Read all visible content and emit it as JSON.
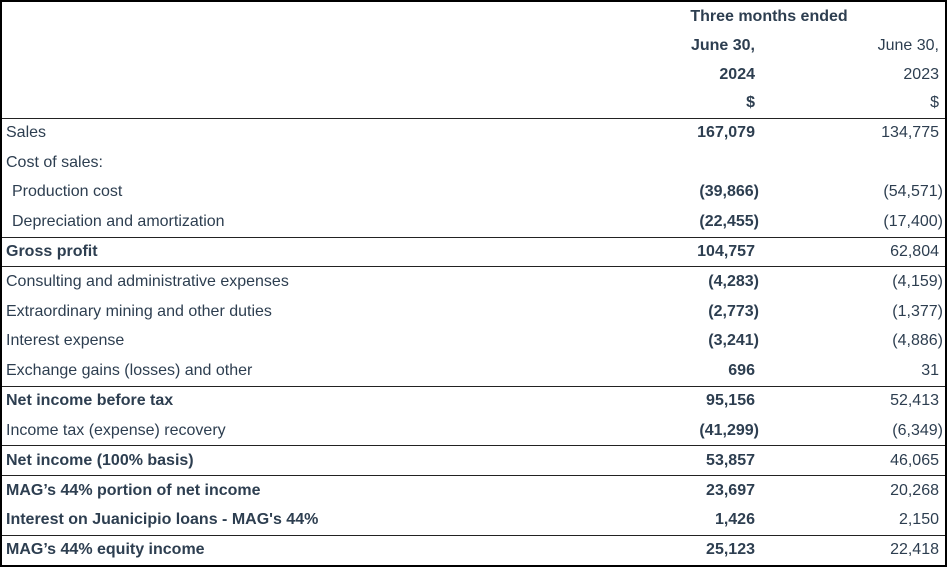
{
  "colors": {
    "text": "#2d3e50",
    "rule": "#222222",
    "outer_border": "#000000",
    "background": "#ffffff"
  },
  "table": {
    "header": {
      "group_title": "Three months ended",
      "col_2024": {
        "month": "June 30,",
        "year": "2024",
        "currency_symbol": "$"
      },
      "col_2023": {
        "month": "June 30,",
        "year": "2023",
        "currency_symbol": "$"
      }
    },
    "rows": [
      {
        "label": "Sales",
        "v2024": "167,079",
        "v2023": "134,775",
        "bold_label": false,
        "indent": false,
        "rule_top": false,
        "rule_bottom": false
      },
      {
        "label": "Cost of sales:",
        "v2024": "",
        "v2023": "",
        "bold_label": false,
        "indent": false,
        "rule_top": false,
        "rule_bottom": false
      },
      {
        "label": "Production cost",
        "v2024": "(39,866)",
        "v2023": "(54,571)",
        "bold_label": false,
        "indent": true,
        "rule_top": false,
        "rule_bottom": false
      },
      {
        "label": "Depreciation and amortization",
        "v2024": "(22,455)",
        "v2023": "(17,400)",
        "bold_label": false,
        "indent": true,
        "rule_top": false,
        "rule_bottom": false
      },
      {
        "label": "Gross profit",
        "v2024": "104,757",
        "v2023": "62,804",
        "bold_label": true,
        "indent": false,
        "rule_top": true,
        "rule_bottom": true
      },
      {
        "label": "Consulting and administrative expenses",
        "v2024": "(4,283)",
        "v2023": "(4,159)",
        "bold_label": false,
        "indent": false,
        "rule_top": false,
        "rule_bottom": false
      },
      {
        "label": "Extraordinary mining and other duties",
        "v2024": "(2,773)",
        "v2023": "(1,377)",
        "bold_label": false,
        "indent": false,
        "rule_top": false,
        "rule_bottom": false
      },
      {
        "label": "Interest expense",
        "v2024": "(3,241)",
        "v2023": "(4,886)",
        "bold_label": false,
        "indent": false,
        "rule_top": false,
        "rule_bottom": false
      },
      {
        "label": "Exchange gains (losses) and other",
        "v2024": "696",
        "v2023": "31",
        "bold_label": false,
        "indent": false,
        "rule_top": false,
        "rule_bottom": false
      },
      {
        "label": "Net income before tax",
        "v2024": "95,156",
        "v2023": "52,413",
        "bold_label": true,
        "indent": false,
        "rule_top": true,
        "rule_bottom": false
      },
      {
        "label": "Income tax (expense) recovery",
        "v2024": "(41,299)",
        "v2023": "(6,349)",
        "bold_label": false,
        "indent": false,
        "rule_top": false,
        "rule_bottom": false
      },
      {
        "label": "Net income (100% basis)",
        "v2024": "53,857",
        "v2023": "46,065",
        "bold_label": true,
        "indent": false,
        "rule_top": true,
        "rule_bottom": true
      },
      {
        "label": "MAG’s 44% portion of net income",
        "v2024": "23,697",
        "v2023": "20,268",
        "bold_label": true,
        "indent": false,
        "rule_top": false,
        "rule_bottom": false
      },
      {
        "label": "Interest on Juanicipio loans - MAG's 44%",
        "v2024": "1,426",
        "v2023": "2,150",
        "bold_label": true,
        "indent": false,
        "rule_top": false,
        "rule_bottom": false
      },
      {
        "label": "MAG’s 44% equity income",
        "v2024": "25,123",
        "v2023": "22,418",
        "bold_label": true,
        "indent": false,
        "rule_top": true,
        "rule_bottom": false
      }
    ]
  }
}
